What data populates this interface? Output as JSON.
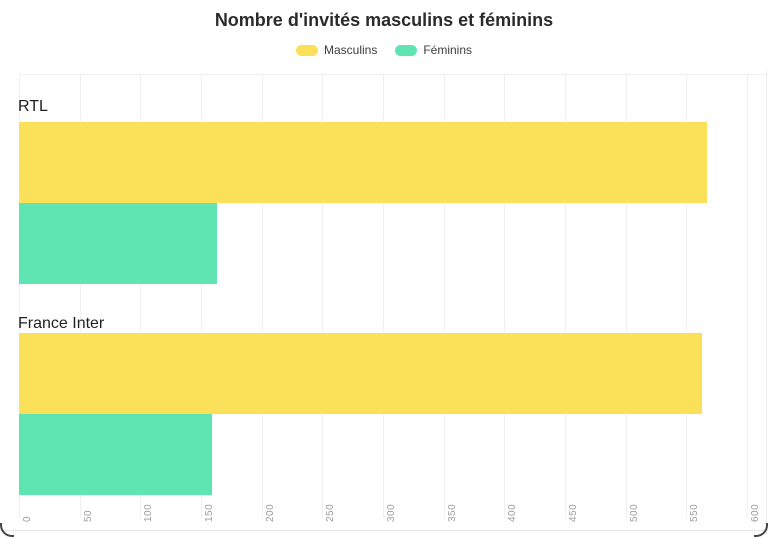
{
  "chart_data": {
    "type": "bar",
    "orientation": "horizontal",
    "title": "Nombre d'invités masculins et féminins",
    "categories": [
      "RTL",
      "France Inter"
    ],
    "series": [
      {
        "name": "Masculins",
        "color": "#FBE05A",
        "values": [
          567,
          563
        ]
      },
      {
        "name": "Féminins",
        "color": "#5FE5B1",
        "values": [
          163,
          159
        ]
      }
    ],
    "x_ticks": [
      0,
      50,
      100,
      150,
      200,
      250,
      300,
      350,
      400,
      450,
      500,
      550,
      600
    ],
    "xlim": [
      0,
      600
    ],
    "grid": true,
    "legend_position": "top",
    "tick_label_rotation": -90,
    "colors": {
      "title_text": "#2b2b2b",
      "category_text": "#1f1f1f",
      "tick_text": "#9c9c9c",
      "gridline": "#f0f0f0"
    }
  }
}
